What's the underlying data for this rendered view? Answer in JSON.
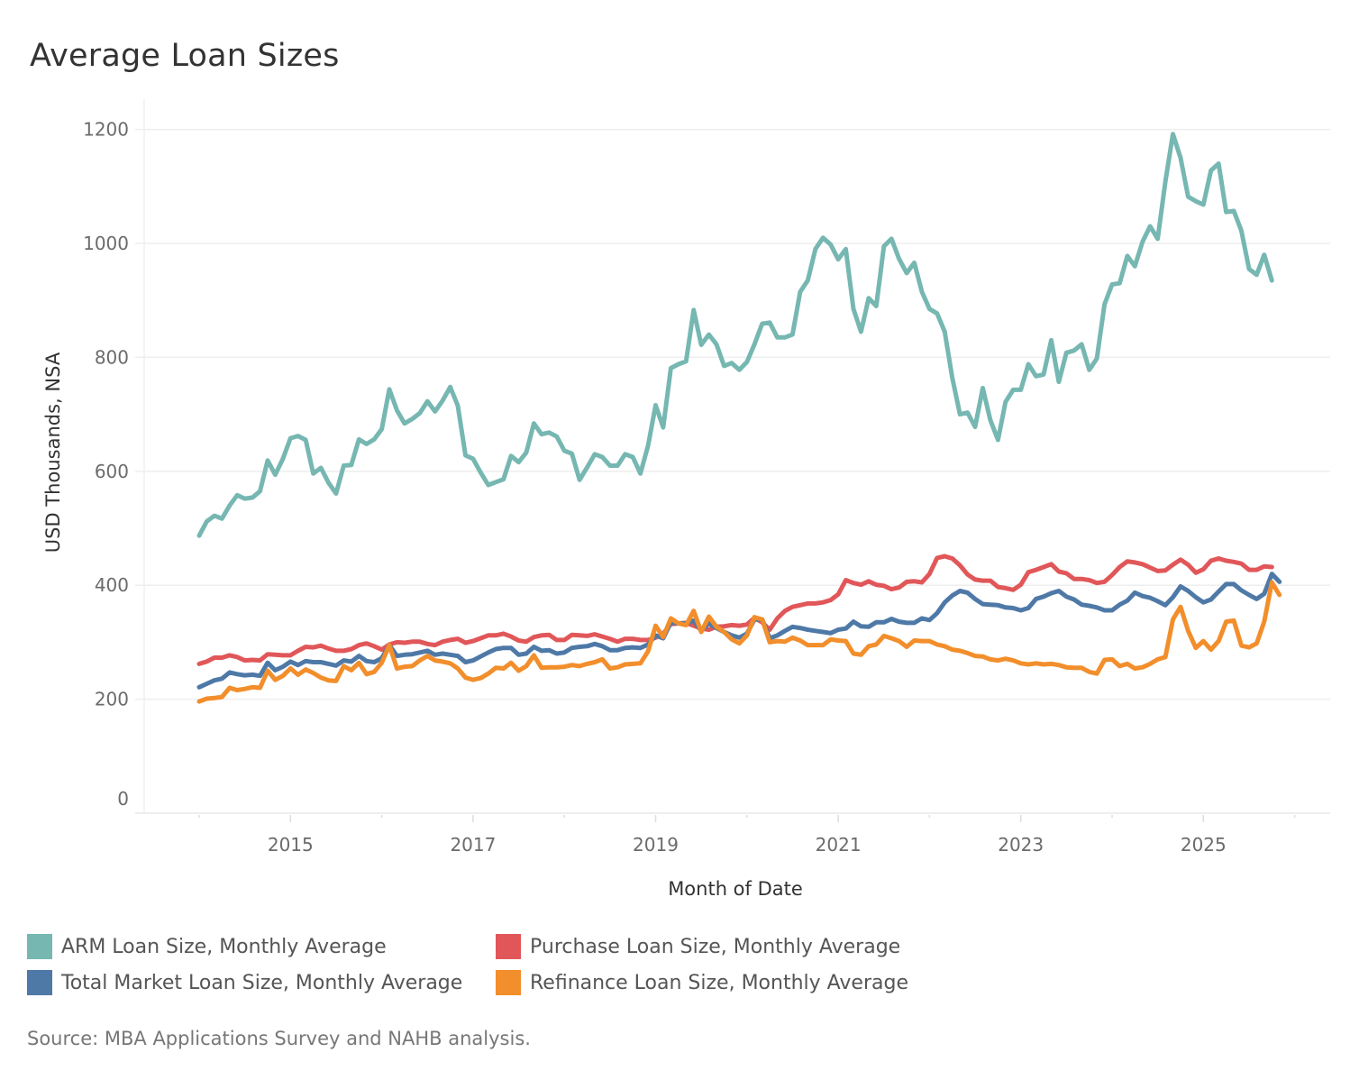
{
  "title": "Average Loan Sizes",
  "source": "Source: MBA Applications Survey and NAHB analysis.",
  "chart_data": {
    "type": "line",
    "title": "Average Loan Sizes",
    "xlabel": "Month of Date",
    "ylabel": "USD Thousands, NSA",
    "ylim": [
      0,
      1200
    ],
    "yticks": [
      "0",
      "200",
      "400",
      "600",
      "800",
      "1000",
      "1200"
    ],
    "xticks": [
      "2015",
      "2017",
      "2019",
      "2021",
      "2023",
      "2025"
    ],
    "x_start": "2014-01",
    "x_end": "2025-10",
    "frequency": "monthly",
    "grid": true,
    "legend_position": "bottom",
    "series": [
      {
        "name": "ARM Loan Size, Monthly Average",
        "color": "#76B7B2",
        "values": [
          487,
          512,
          522,
          517,
          540,
          558,
          552,
          554,
          565,
          619,
          594,
          622,
          658,
          662,
          655,
          596,
          606,
          580,
          561,
          610,
          611,
          656,
          648,
          656,
          674,
          744,
          707,
          684,
          692,
          702,
          723,
          705,
          724,
          748,
          715,
          628,
          622,
          598,
          576,
          581,
          586,
          627,
          616,
          633,
          684,
          665,
          668,
          661,
          636,
          631,
          585,
          607,
          630,
          625,
          610,
          610,
          630,
          625,
          596,
          645,
          716,
          677,
          781,
          788,
          793,
          883,
          822,
          840,
          823,
          785,
          790,
          778,
          792,
          823,
          859,
          861,
          835,
          835,
          840,
          915,
          935,
          990,
          1010,
          998,
          972,
          990,
          885,
          845,
          904,
          890,
          995,
          1008,
          973,
          948,
          966,
          915,
          885,
          877,
          845,
          764,
          700,
          703,
          678,
          746,
          690,
          655,
          722,
          743,
          743,
          788,
          767,
          770,
          830,
          757,
          808,
          812,
          823,
          778,
          798,
          893,
          928,
          930,
          978,
          960,
          1003,
          1030,
          1008,
          1108,
          1192,
          1150,
          1082,
          1074,
          1068,
          1128,
          1140,
          1055,
          1057,
          1022,
          955,
          945,
          980,
          935
        ]
      },
      {
        "name": "Purchase Loan Size, Monthly Average",
        "color": "#E15759",
        "values": [
          262,
          266,
          273,
          273,
          277,
          274,
          268,
          269,
          268,
          279,
          278,
          277,
          277,
          285,
          292,
          291,
          294,
          289,
          285,
          285,
          288,
          295,
          298,
          293,
          287,
          296,
          300,
          299,
          301,
          301,
          297,
          295,
          301,
          304,
          306,
          299,
          302,
          307,
          312,
          312,
          315,
          310,
          303,
          301,
          309,
          312,
          313,
          304,
          304,
          313,
          312,
          311,
          314,
          310,
          306,
          301,
          306,
          306,
          304,
          304,
          308,
          315,
          332,
          333,
          334,
          329,
          324,
          322,
          327,
          328,
          330,
          329,
          331,
          343,
          335,
          322,
          342,
          355,
          362,
          365,
          368,
          368,
          370,
          374,
          384,
          409,
          404,
          401,
          407,
          401,
          399,
          393,
          396,
          406,
          407,
          405,
          420,
          448,
          451,
          447,
          435,
          419,
          410,
          408,
          408,
          397,
          395,
          392,
          401,
          423,
          427,
          432,
          437,
          424,
          421,
          411,
          411,
          409,
          404,
          406,
          418,
          432,
          442,
          440,
          437,
          431,
          425,
          426,
          436,
          445,
          436,
          422,
          428,
          443,
          447,
          443,
          441,
          438,
          427,
          427,
          433,
          432
        ]
      },
      {
        "name": "Total Market Loan Size, Monthly Average",
        "color": "#4E79A7",
        "values": [
          221,
          227,
          233,
          236,
          247,
          244,
          242,
          243,
          241,
          264,
          251,
          257,
          266,
          260,
          267,
          265,
          265,
          262,
          259,
          268,
          266,
          276,
          267,
          265,
          272,
          295,
          276,
          278,
          279,
          282,
          285,
          278,
          280,
          278,
          276,
          265,
          268,
          275,
          282,
          288,
          290,
          290,
          278,
          280,
          292,
          285,
          286,
          280,
          282,
          290,
          292,
          293,
          297,
          293,
          286,
          286,
          290,
          291,
          290,
          296,
          312,
          307,
          335,
          333,
          333,
          338,
          320,
          333,
          325,
          318,
          312,
          308,
          315,
          340,
          340,
          307,
          312,
          320,
          327,
          325,
          322,
          320,
          318,
          316,
          322,
          324,
          336,
          328,
          327,
          335,
          335,
          341,
          336,
          334,
          334,
          342,
          339,
          351,
          370,
          382,
          390,
          387,
          376,
          367,
          366,
          365,
          361,
          360,
          356,
          360,
          376,
          380,
          386,
          390,
          380,
          375,
          366,
          364,
          361,
          356,
          356,
          366,
          373,
          387,
          381,
          378,
          372,
          365,
          379,
          398,
          390,
          379,
          370,
          375,
          389,
          402,
          402,
          391,
          383,
          376,
          385,
          420,
          406
        ]
      },
      {
        "name": "Refinance Loan Size, Monthly Average",
        "color": "#F28E2B",
        "values": [
          196,
          201,
          202,
          204,
          220,
          216,
          218,
          221,
          220,
          250,
          234,
          241,
          254,
          243,
          252,
          246,
          238,
          233,
          232,
          258,
          251,
          264,
          244,
          248,
          264,
          295,
          254,
          257,
          258,
          268,
          276,
          268,
          266,
          263,
          254,
          238,
          234,
          237,
          245,
          255,
          254,
          264,
          250,
          258,
          277,
          255,
          256,
          256,
          257,
          260,
          258,
          262,
          265,
          270,
          254,
          256,
          261,
          262,
          263,
          284,
          329,
          309,
          342,
          333,
          330,
          355,
          318,
          345,
          327,
          318,
          305,
          298,
          312,
          344,
          340,
          300,
          302,
          301,
          308,
          303,
          295,
          295,
          295,
          305,
          303,
          302,
          280,
          278,
          293,
          296,
          311,
          307,
          302,
          292,
          303,
          302,
          302,
          296,
          293,
          287,
          285,
          281,
          276,
          275,
          270,
          268,
          271,
          268,
          263,
          261,
          263,
          261,
          262,
          260,
          256,
          255,
          255,
          248,
          245,
          269,
          270,
          258,
          262,
          254,
          256,
          262,
          270,
          274,
          340,
          362,
          320,
          290,
          302,
          287,
          302,
          336,
          338,
          294,
          291,
          298,
          336,
          405,
          383
        ]
      }
    ]
  }
}
